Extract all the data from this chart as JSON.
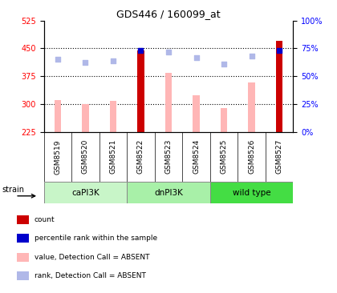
{
  "title": "GDS446 / 160099_at",
  "samples": [
    "GSM8519",
    "GSM8520",
    "GSM8521",
    "GSM8522",
    "GSM8523",
    "GSM8524",
    "GSM8525",
    "GSM8526",
    "GSM8527"
  ],
  "value_bars": [
    310,
    300,
    308,
    445,
    383,
    323,
    288,
    358,
    470
  ],
  "rank_percentiles": [
    65,
    62,
    64,
    73,
    72,
    67,
    61,
    68,
    73
  ],
  "dark_red_indices": [
    3,
    8
  ],
  "blue_dot_indices": [
    3,
    8
  ],
  "ylim_left": [
    225,
    525
  ],
  "ylim_right": [
    0,
    100
  ],
  "yticks_left": [
    225,
    300,
    375,
    450,
    525
  ],
  "yticks_right": [
    0,
    25,
    50,
    75,
    100
  ],
  "bar_color_normal": "#ffb6b6",
  "bar_color_dark": "#cc0000",
  "dot_color_normal": "#b0b8e8",
  "dot_color_blue": "#0000cc",
  "group_configs": [
    {
      "indices": [
        0,
        1,
        2
      ],
      "name": "caPI3K",
      "color": "#c8f5c8"
    },
    {
      "indices": [
        3,
        4,
        5
      ],
      "name": "dnPI3K",
      "color": "#a8f0a8"
    },
    {
      "indices": [
        6,
        7,
        8
      ],
      "name": "wild type",
      "color": "#44dd44"
    }
  ],
  "legend_items": [
    {
      "color": "#cc0000",
      "label": "count"
    },
    {
      "color": "#0000cc",
      "label": "percentile rank within the sample"
    },
    {
      "color": "#ffb6b6",
      "label": "value, Detection Call = ABSENT"
    },
    {
      "color": "#b0b8e8",
      "label": "rank, Detection Call = ABSENT"
    }
  ],
  "hgrid_values": [
    300,
    375,
    450
  ],
  "bar_width": 0.25,
  "tick_area_color": "#d8d8d8"
}
